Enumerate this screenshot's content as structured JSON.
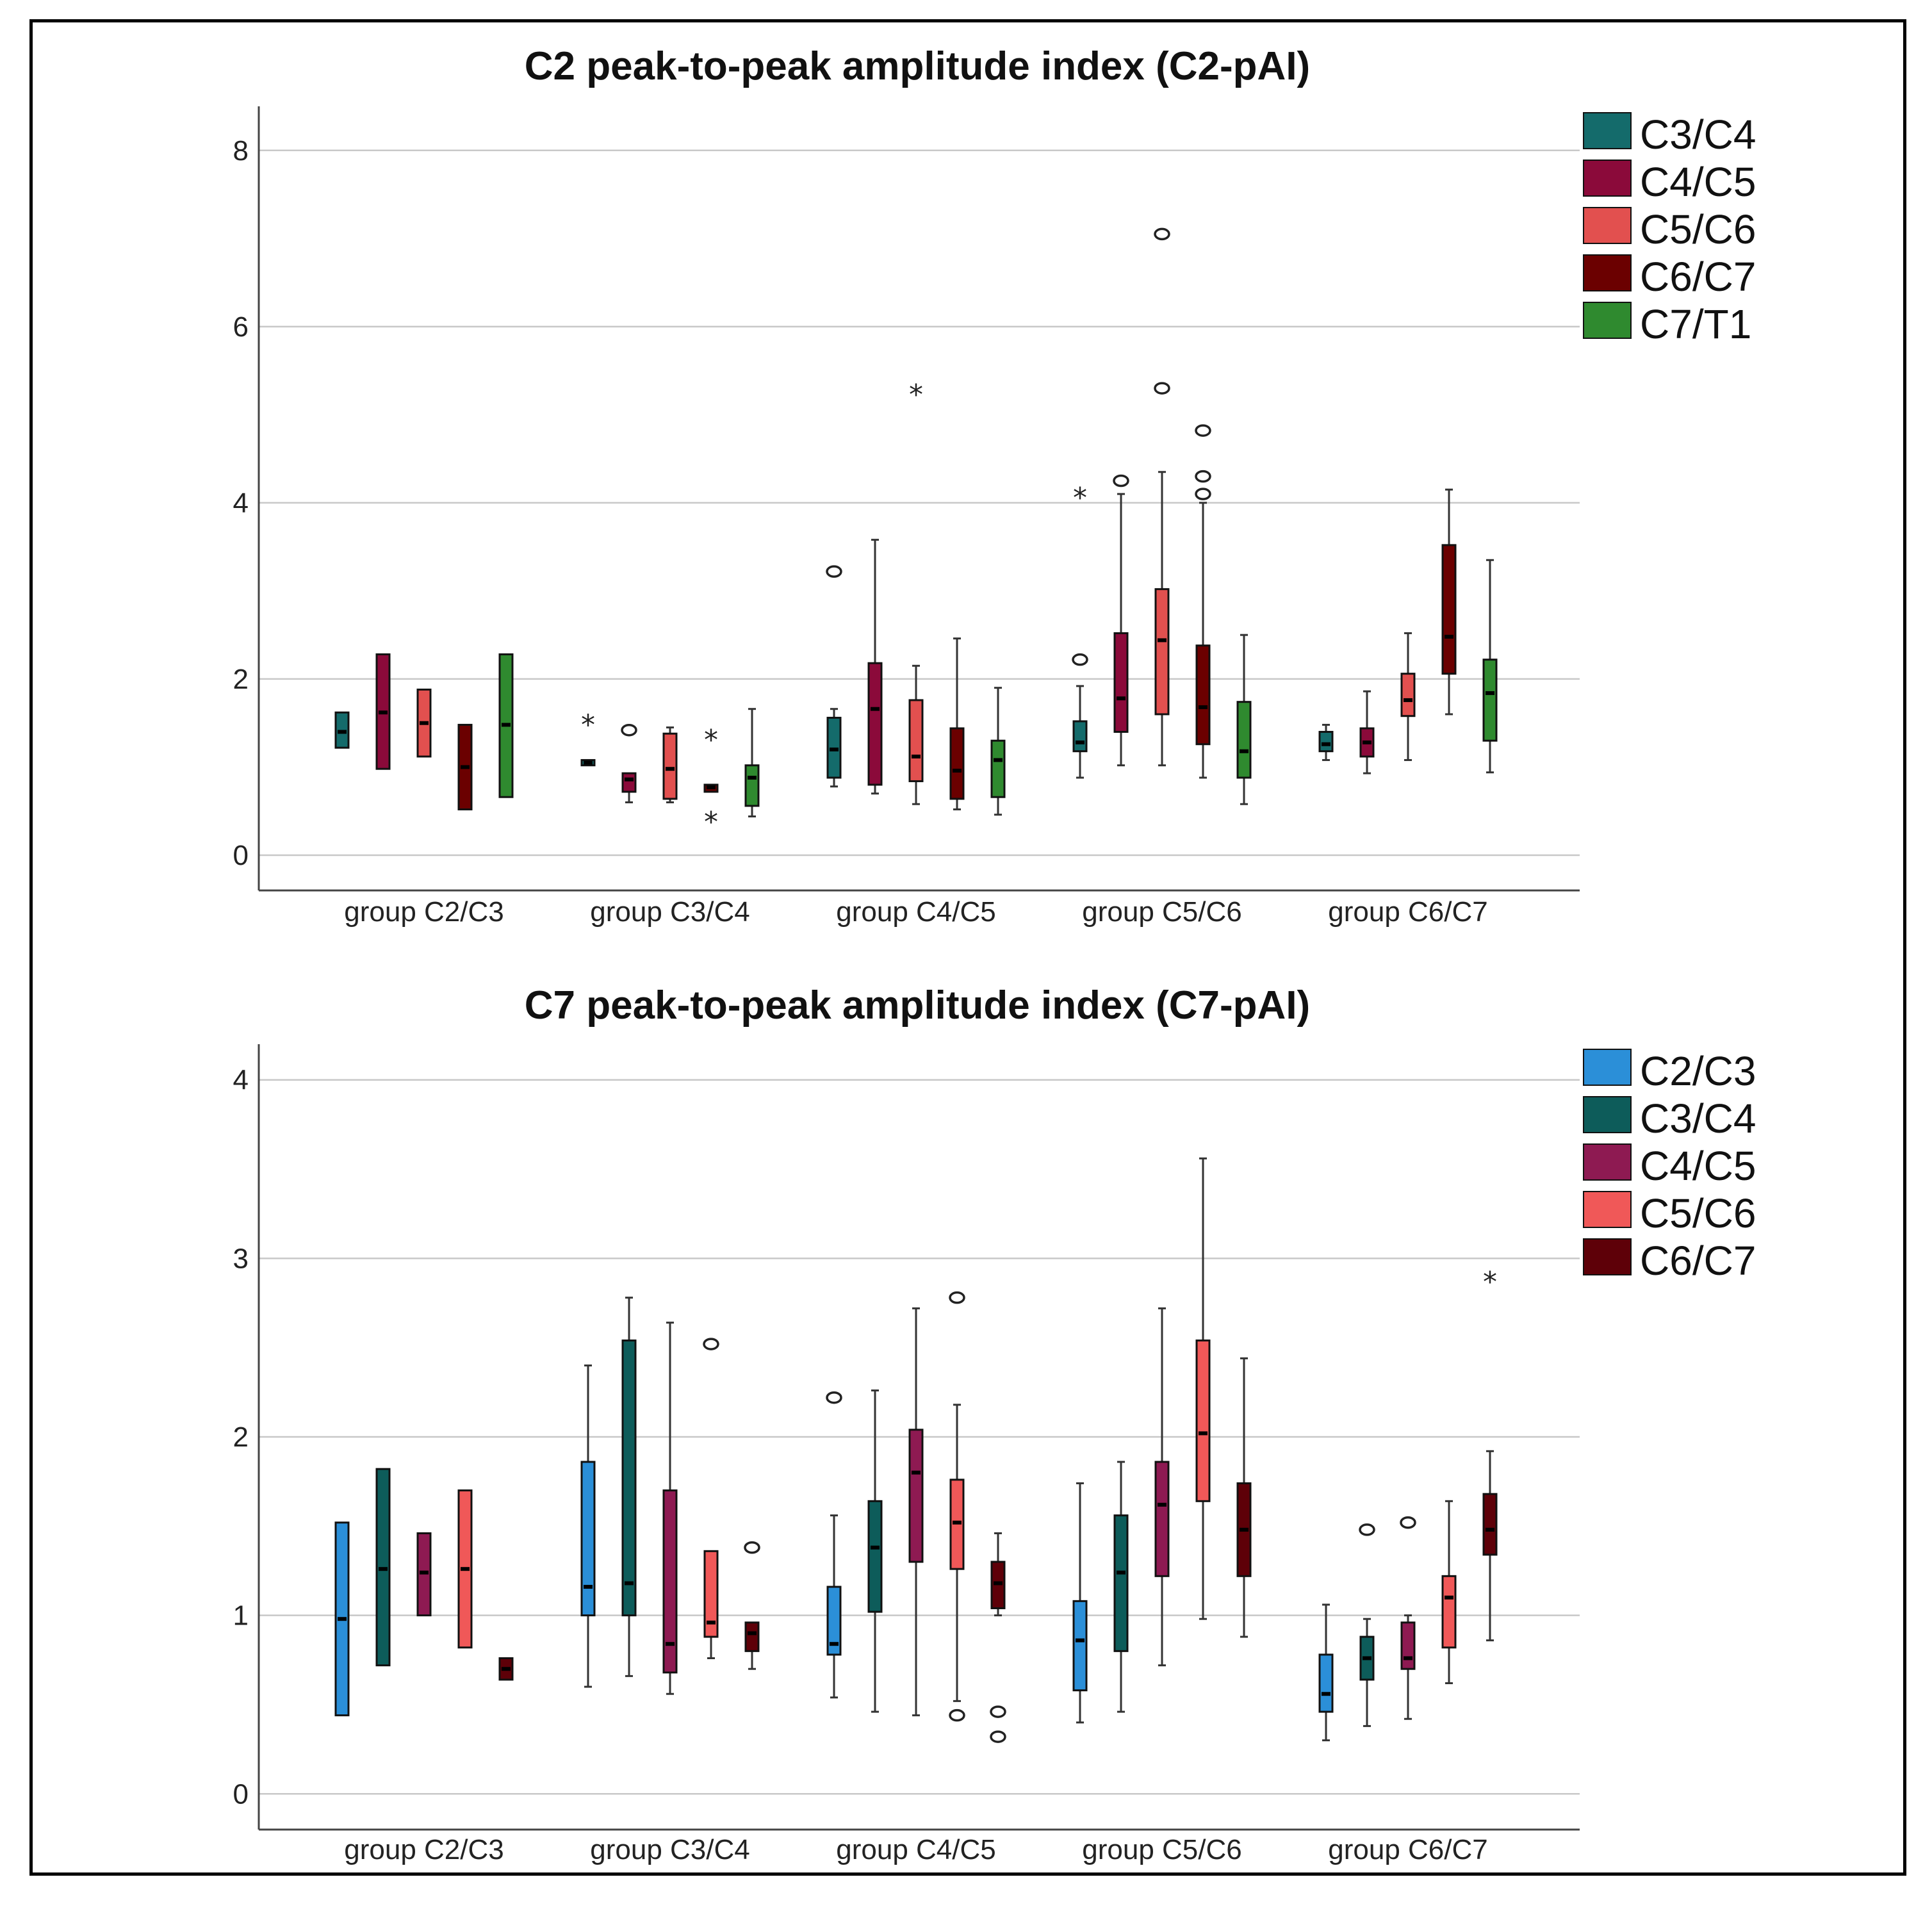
{
  "chart_data": [
    {
      "type": "boxplot",
      "title": "C2 peak-to-peak amplitude index (C2-pAI)",
      "categories": [
        "group C2/C3",
        "group C3/C4",
        "group C4/C5",
        "group C5/C6",
        "group C6/C7"
      ],
      "ylim": [
        -0.4,
        8.5
      ],
      "yticks": [
        0,
        2,
        4,
        6,
        8
      ],
      "grid": true,
      "legend_position": "top-right",
      "series": [
        {
          "name": "C3/C4",
          "color": "#146b6b",
          "boxes": [
            {
              "min": 1.22,
              "q1": 1.22,
              "median": 1.4,
              "q3": 1.62,
              "max": 1.62,
              "outliers": [],
              "extremes": []
            },
            {
              "min": 1.02,
              "q1": 1.02,
              "median": 1.05,
              "q3": 1.08,
              "max": 1.08,
              "outliers": [],
              "extremes": [
                1.5
              ]
            },
            {
              "min": 0.78,
              "q1": 0.88,
              "median": 1.2,
              "q3": 1.56,
              "max": 1.66,
              "outliers": [
                3.22
              ],
              "extremes": []
            },
            {
              "min": 0.88,
              "q1": 1.18,
              "median": 1.28,
              "q3": 1.52,
              "max": 1.92,
              "outliers": [
                2.22
              ],
              "extremes": [
                4.08
              ]
            },
            {
              "min": 1.08,
              "q1": 1.18,
              "median": 1.26,
              "q3": 1.4,
              "max": 1.48,
              "outliers": [],
              "extremes": []
            }
          ]
        },
        {
          "name": "C4/C5",
          "color": "#8b0a3a",
          "boxes": [
            {
              "min": 0.98,
              "q1": 0.98,
              "median": 1.62,
              "q3": 2.28,
              "max": 2.28,
              "outliers": [],
              "extremes": []
            },
            {
              "min": 0.6,
              "q1": 0.72,
              "median": 0.86,
              "q3": 0.93,
              "max": 0.93,
              "outliers": [
                1.42
              ],
              "extremes": []
            },
            {
              "min": 0.7,
              "q1": 0.8,
              "median": 1.66,
              "q3": 2.18,
              "max": 3.58,
              "outliers": [],
              "extremes": []
            },
            {
              "min": 1.02,
              "q1": 1.4,
              "median": 1.78,
              "q3": 2.52,
              "max": 4.1,
              "outliers": [
                4.25
              ],
              "extremes": []
            },
            {
              "min": 0.93,
              "q1": 1.12,
              "median": 1.28,
              "q3": 1.44,
              "max": 1.86,
              "outliers": [],
              "extremes": []
            }
          ]
        },
        {
          "name": "C5/C6",
          "color": "#e2504f",
          "boxes": [
            {
              "min": 1.12,
              "q1": 1.12,
              "median": 1.5,
              "q3": 1.88,
              "max": 1.88,
              "outliers": [],
              "extremes": []
            },
            {
              "min": 0.6,
              "q1": 0.64,
              "median": 0.98,
              "q3": 1.38,
              "max": 1.45,
              "outliers": [],
              "extremes": []
            },
            {
              "min": 0.58,
              "q1": 0.84,
              "median": 1.12,
              "q3": 1.76,
              "max": 2.15,
              "outliers": [],
              "extremes": [
                5.25
              ]
            },
            {
              "min": 1.02,
              "q1": 1.6,
              "median": 2.44,
              "q3": 3.02,
              "max": 4.35,
              "outliers": [
                5.3,
                7.05
              ],
              "extremes": []
            },
            {
              "min": 1.08,
              "q1": 1.58,
              "median": 1.76,
              "q3": 2.06,
              "max": 2.52,
              "outliers": [],
              "extremes": []
            }
          ]
        },
        {
          "name": "C6/C7",
          "color": "#6b0000",
          "boxes": [
            {
              "min": 0.52,
              "q1": 0.52,
              "median": 1.0,
              "q3": 1.48,
              "max": 1.48,
              "outliers": [],
              "extremes": []
            },
            {
              "min": 0.72,
              "q1": 0.72,
              "median": 0.77,
              "q3": 0.8,
              "max": 0.8,
              "outliers": [],
              "extremes": [
                0.4,
                1.33
              ]
            },
            {
              "min": 0.52,
              "q1": 0.64,
              "median": 0.96,
              "q3": 1.44,
              "max": 2.46,
              "outliers": [],
              "extremes": []
            },
            {
              "min": 0.88,
              "q1": 1.26,
              "median": 1.68,
              "q3": 2.38,
              "max": 4.0,
              "outliers": [
                4.1,
                4.3,
                4.82
              ],
              "extremes": []
            },
            {
              "min": 1.6,
              "q1": 2.06,
              "median": 2.48,
              "q3": 3.52,
              "max": 4.15,
              "outliers": [],
              "extremes": []
            }
          ]
        },
        {
          "name": "C7/T1",
          "color": "#2f8a2f",
          "boxes": [
            {
              "min": 0.66,
              "q1": 0.66,
              "median": 1.48,
              "q3": 2.28,
              "max": 2.28,
              "outliers": [],
              "extremes": []
            },
            {
              "min": 0.44,
              "q1": 0.56,
              "median": 0.88,
              "q3": 1.02,
              "max": 1.66,
              "outliers": [],
              "extremes": []
            },
            {
              "min": 0.46,
              "q1": 0.66,
              "median": 1.08,
              "q3": 1.3,
              "max": 1.9,
              "outliers": [],
              "extremes": []
            },
            {
              "min": 0.58,
              "q1": 0.88,
              "median": 1.18,
              "q3": 1.74,
              "max": 2.5,
              "outliers": [],
              "extremes": []
            },
            {
              "min": 0.94,
              "q1": 1.3,
              "median": 1.84,
              "q3": 2.22,
              "max": 3.35,
              "outliers": [],
              "extremes": []
            }
          ]
        }
      ]
    },
    {
      "type": "boxplot",
      "title": "C7 peak-to-peak amplitude index (C7-pAI)",
      "categories": [
        "group C2/C3",
        "group C3/C4",
        "group C4/C5",
        "group C5/C6",
        "group C6/C7"
      ],
      "ylim": [
        -0.2,
        4.2
      ],
      "yticks": [
        0,
        1,
        2,
        3,
        4
      ],
      "grid": true,
      "legend_position": "top-right",
      "series": [
        {
          "name": "C2/C3",
          "color": "#2b8fd8",
          "boxes": [
            {
              "min": 0.44,
              "q1": 0.44,
              "median": 0.98,
              "q3": 1.52,
              "max": 1.52,
              "outliers": [],
              "extremes": []
            },
            {
              "min": 0.6,
              "q1": 1.0,
              "median": 1.16,
              "q3": 1.86,
              "max": 2.4,
              "outliers": [],
              "extremes": []
            },
            {
              "min": 0.54,
              "q1": 0.78,
              "median": 0.84,
              "q3": 1.16,
              "max": 1.56,
              "outliers": [
                2.22
              ],
              "extremes": []
            },
            {
              "min": 0.4,
              "q1": 0.58,
              "median": 0.86,
              "q3": 1.08,
              "max": 1.74,
              "outliers": [],
              "extremes": []
            },
            {
              "min": 0.3,
              "q1": 0.46,
              "median": 0.56,
              "q3": 0.78,
              "max": 1.06,
              "outliers": [],
              "extremes": []
            }
          ]
        },
        {
          "name": "C3/C4",
          "color": "#0d5c5a",
          "boxes": [
            {
              "min": 0.72,
              "q1": 0.72,
              "median": 1.26,
              "q3": 1.82,
              "max": 1.82,
              "outliers": [],
              "extremes": []
            },
            {
              "min": 0.66,
              "q1": 1.0,
              "median": 1.18,
              "q3": 2.54,
              "max": 2.78,
              "outliers": [],
              "extremes": []
            },
            {
              "min": 0.46,
              "q1": 1.02,
              "median": 1.38,
              "q3": 1.64,
              "max": 2.26,
              "outliers": [],
              "extremes": []
            },
            {
              "min": 0.46,
              "q1": 0.8,
              "median": 1.24,
              "q3": 1.56,
              "max": 1.86,
              "outliers": [],
              "extremes": []
            },
            {
              "min": 0.38,
              "q1": 0.64,
              "median": 0.76,
              "q3": 0.88,
              "max": 0.98,
              "outliers": [
                1.48
              ],
              "extremes": []
            }
          ]
        },
        {
          "name": "C4/C5",
          "color": "#8e1a52",
          "boxes": [
            {
              "min": 1.0,
              "q1": 1.0,
              "median": 1.24,
              "q3": 1.46,
              "max": 1.46,
              "outliers": [],
              "extremes": []
            },
            {
              "min": 0.56,
              "q1": 0.68,
              "median": 0.84,
              "q3": 1.7,
              "max": 2.64,
              "outliers": [],
              "extremes": []
            },
            {
              "min": 0.44,
              "q1": 1.3,
              "median": 1.8,
              "q3": 2.04,
              "max": 2.72,
              "outliers": [],
              "extremes": []
            },
            {
              "min": 0.72,
              "q1": 1.22,
              "median": 1.62,
              "q3": 1.86,
              "max": 2.72,
              "outliers": [],
              "extremes": []
            },
            {
              "min": 0.42,
              "q1": 0.7,
              "median": 0.76,
              "q3": 0.96,
              "max": 1.0,
              "outliers": [
                1.52
              ],
              "extremes": []
            }
          ]
        },
        {
          "name": "C5/C6",
          "color": "#f05858",
          "boxes": [
            {
              "min": 0.82,
              "q1": 0.82,
              "median": 1.26,
              "q3": 1.7,
              "max": 1.7,
              "outliers": [],
              "extremes": []
            },
            {
              "min": 0.76,
              "q1": 0.88,
              "median": 0.96,
              "q3": 1.36,
              "max": 1.36,
              "outliers": [
                2.52
              ],
              "extremes": []
            },
            {
              "min": 0.52,
              "q1": 1.26,
              "median": 1.52,
              "q3": 1.76,
              "max": 2.18,
              "outliers": [
                0.44,
                2.78
              ],
              "extremes": []
            },
            {
              "min": 0.98,
              "q1": 1.64,
              "median": 2.02,
              "q3": 2.54,
              "max": 3.56,
              "outliers": [],
              "extremes": []
            },
            {
              "min": 0.62,
              "q1": 0.82,
              "median": 1.1,
              "q3": 1.22,
              "max": 1.64,
              "outliers": [],
              "extremes": []
            }
          ]
        },
        {
          "name": "C6/C7",
          "color": "#5e0008",
          "boxes": [
            {
              "min": 0.64,
              "q1": 0.64,
              "median": 0.7,
              "q3": 0.76,
              "max": 0.76,
              "outliers": [],
              "extremes": []
            },
            {
              "min": 0.7,
              "q1": 0.8,
              "median": 0.9,
              "q3": 0.96,
              "max": 0.96,
              "outliers": [
                1.38
              ],
              "extremes": []
            },
            {
              "min": 1.0,
              "q1": 1.04,
              "median": 1.18,
              "q3": 1.3,
              "max": 1.46,
              "outliers": [
                0.32,
                0.46
              ],
              "extremes": []
            },
            {
              "min": 0.88,
              "q1": 1.22,
              "median": 1.48,
              "q3": 1.74,
              "max": 2.44,
              "outliers": [],
              "extremes": []
            },
            {
              "min": 0.86,
              "q1": 1.34,
              "median": 1.48,
              "q3": 1.68,
              "max": 1.92,
              "outliers": [],
              "extremes": [
                2.88
              ]
            }
          ]
        }
      ]
    }
  ]
}
